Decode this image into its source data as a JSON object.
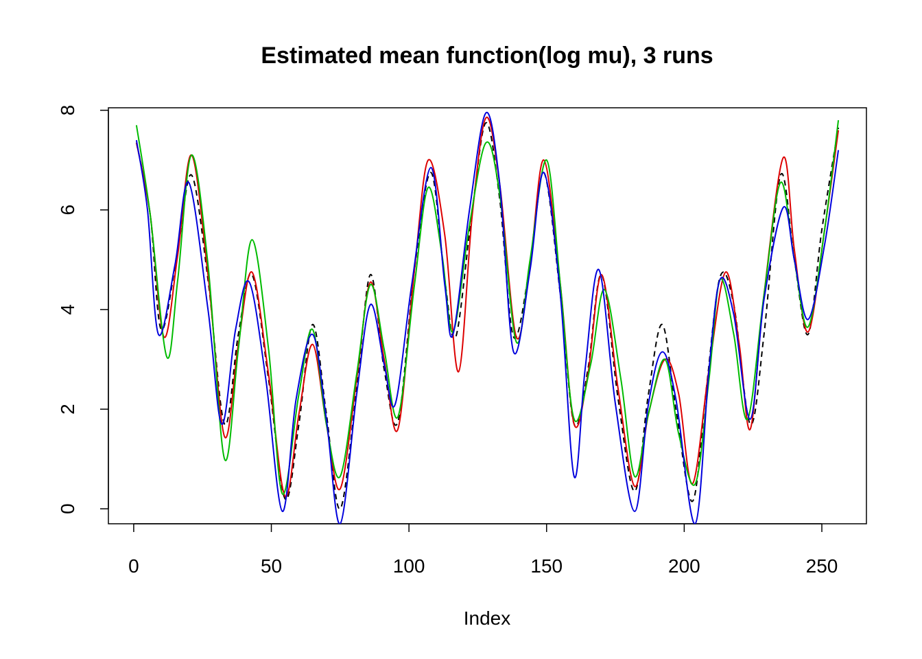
{
  "chart_data": {
    "type": "line",
    "title": "Estimated mean function(log mu), 3 runs",
    "xlabel": "Index",
    "ylabel": "",
    "xlim": [
      -9.2,
      266.2
    ],
    "ylim": [
      -0.3,
      8.05
    ],
    "xticks": [
      0,
      50,
      100,
      150,
      200,
      250
    ],
    "yticks": [
      0,
      2,
      4,
      6,
      8
    ],
    "grid": false,
    "series": [
      {
        "color": "#000000",
        "dash": "dashed",
        "x": [
          1,
          6,
          10,
          16,
          21,
          27,
          33,
          38,
          43,
          49,
          55,
          60,
          65,
          70,
          75,
          81,
          86,
          91,
          96,
          102,
          108,
          113,
          117,
          123,
          128,
          133,
          138,
          144,
          149,
          155,
          160,
          165,
          170,
          176,
          182,
          187,
          192,
          197,
          203,
          208,
          213,
          218,
          224,
          229,
          235,
          240,
          245,
          250,
          256
        ],
        "y": [
          7.35,
          5.9,
          3.6,
          5.2,
          6.7,
          4.6,
          1.7,
          3.5,
          4.7,
          2.6,
          0.2,
          1.7,
          3.7,
          1.9,
          0.0,
          2.4,
          4.7,
          2.8,
          1.75,
          4.8,
          6.75,
          4.6,
          3.45,
          6.0,
          7.75,
          6.2,
          3.45,
          4.9,
          6.75,
          4.3,
          1.7,
          2.8,
          4.7,
          2.2,
          0.35,
          2.3,
          3.7,
          2.0,
          0.15,
          2.4,
          4.65,
          4.1,
          1.7,
          3.5,
          6.7,
          5.0,
          3.5,
          5.6,
          7.65
        ]
      },
      {
        "color": "#dd0000",
        "dash": "solid",
        "x": [
          1,
          6,
          11,
          16,
          21,
          27,
          33,
          38,
          43,
          49,
          55,
          60,
          65,
          70,
          75,
          81,
          86,
          91,
          96,
          102,
          107,
          113,
          118,
          123,
          128,
          133,
          139,
          144,
          149,
          155,
          160,
          165,
          170,
          176,
          182,
          187,
          193,
          198,
          203,
          209,
          215,
          220,
          224,
          229,
          236,
          240,
          245,
          251,
          256
        ],
        "y": [
          7.35,
          5.9,
          3.45,
          5.1,
          7.1,
          4.7,
          1.45,
          3.3,
          4.75,
          2.7,
          0.25,
          1.9,
          3.3,
          1.7,
          0.4,
          2.6,
          4.55,
          3.0,
          1.6,
          4.8,
          7.0,
          5.5,
          2.75,
          5.9,
          7.85,
          6.5,
          3.45,
          4.9,
          7.0,
          4.5,
          1.7,
          2.7,
          4.7,
          2.4,
          0.45,
          1.9,
          3.0,
          2.3,
          0.5,
          2.8,
          4.75,
          3.3,
          1.6,
          4.3,
          7.05,
          5.2,
          3.55,
          5.6,
          7.6
        ]
      },
      {
        "color": "#00bb00",
        "dash": "solid",
        "x": [
          1,
          6,
          12,
          16,
          21,
          27,
          33,
          38,
          43,
          49,
          54,
          60,
          65,
          70,
          75,
          81,
          86,
          91,
          96,
          102,
          107,
          112,
          116,
          122,
          128,
          133,
          139,
          144,
          150,
          155,
          160,
          166,
          171,
          177,
          182,
          187,
          193,
          198,
          204,
          209,
          213,
          218,
          223,
          229,
          235,
          240,
          245,
          251,
          256
        ],
        "y": [
          7.7,
          5.9,
          3.05,
          4.6,
          7.1,
          4.9,
          1.0,
          3.2,
          5.4,
          3.2,
          0.3,
          2.3,
          3.6,
          1.7,
          0.65,
          2.7,
          4.5,
          3.2,
          1.85,
          4.5,
          6.45,
          5.1,
          3.55,
          5.7,
          7.35,
          6.3,
          3.35,
          5.0,
          7.0,
          4.5,
          1.8,
          2.9,
          4.4,
          2.6,
          0.65,
          1.9,
          3.0,
          1.5,
          0.5,
          2.6,
          4.6,
          3.5,
          1.8,
          4.3,
          6.55,
          5.0,
          3.65,
          5.6,
          7.8
        ]
      },
      {
        "color": "#0000dd",
        "dash": "solid",
        "x": [
          1,
          5,
          9,
          15,
          20,
          27,
          32,
          37,
          42,
          48,
          54,
          59,
          65,
          70,
          75,
          81,
          86,
          91,
          95,
          101,
          108,
          113,
          116,
          122,
          128,
          133,
          138,
          144,
          149,
          155,
          160,
          164,
          169,
          175,
          182,
          187,
          192,
          197,
          204,
          209,
          213,
          218,
          224,
          229,
          236,
          240,
          245,
          251,
          256
        ],
        "y": [
          7.4,
          6.0,
          3.5,
          4.9,
          6.55,
          4.0,
          1.7,
          3.6,
          4.55,
          2.6,
          -0.05,
          2.2,
          3.5,
          1.8,
          -0.3,
          2.3,
          4.1,
          2.9,
          2.1,
          4.5,
          6.85,
          4.5,
          3.5,
          6.0,
          7.95,
          6.5,
          3.15,
          4.8,
          6.75,
          4.3,
          0.65,
          2.8,
          4.8,
          2.1,
          -0.05,
          2.1,
          3.15,
          2.2,
          -0.3,
          2.8,
          4.6,
          3.9,
          1.8,
          4.2,
          6.05,
          5.0,
          3.8,
          5.3,
          7.2
        ]
      }
    ]
  }
}
